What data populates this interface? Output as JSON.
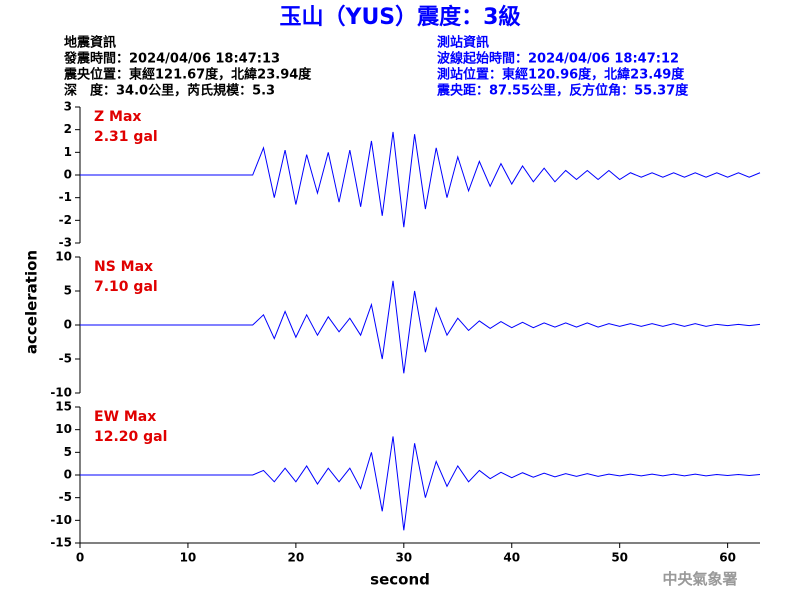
{
  "header": {
    "title": "玉山（YUS）震度：3級",
    "left": [
      "地震資訊",
      "發震時間：2024/04/06 18:47:13",
      "震央位置：東經121.67度，北緯23.94度",
      "深　度：34.0公里，芮氏規模：5.3"
    ],
    "right": [
      "測站資訊",
      "波線起始時間：2024/04/06 18:47:12",
      "測站位置：東經120.96度，北緯23.49度",
      "震央距：87.55公里，反方位角：55.37度"
    ],
    "ylabel": "acceleration",
    "xlabel": "second",
    "footer": "中央氣象署"
  },
  "chart_data": [
    {
      "type": "line",
      "title": "Z Max",
      "annotation": "2.31 gal",
      "color": "#0000ff",
      "title_color": "#e00000",
      "x": [
        0,
        1,
        2,
        3,
        4,
        5,
        6,
        7,
        8,
        9,
        10,
        11,
        12,
        13,
        14,
        15,
        16,
        17,
        18,
        19,
        20,
        21,
        22,
        23,
        24,
        25,
        26,
        27,
        28,
        29,
        30,
        31,
        32,
        33,
        34,
        35,
        36,
        37,
        38,
        39,
        40,
        41,
        42,
        43,
        44,
        45,
        46,
        47,
        48,
        49,
        50,
        51,
        52,
        53,
        54,
        55,
        56,
        57,
        58,
        59,
        60,
        61,
        62,
        63
      ],
      "values": [
        0,
        0,
        0,
        0,
        0,
        0,
        0,
        0,
        0,
        0,
        0,
        0,
        0,
        0,
        0,
        0,
        0,
        1.2,
        -1.0,
        1.1,
        -1.3,
        0.9,
        -0.8,
        1.0,
        -1.2,
        1.1,
        -1.4,
        1.5,
        -1.8,
        1.9,
        -2.3,
        1.8,
        -1.5,
        1.2,
        -1.0,
        0.8,
        -0.7,
        0.6,
        -0.5,
        0.5,
        -0.4,
        0.4,
        -0.3,
        0.3,
        -0.3,
        0.2,
        -0.2,
        0.2,
        -0.2,
        0.2,
        -0.2,
        0.1,
        -0.1,
        0.1,
        -0.1,
        0.1,
        -0.1,
        0.1,
        -0.1,
        0.1,
        -0.1,
        0.1,
        -0.1,
        0.1
      ],
      "xlim": [
        0,
        63
      ],
      "ylim": [
        -3,
        3
      ],
      "yticks": [
        -3,
        -2,
        -1,
        0,
        1,
        2,
        3
      ]
    },
    {
      "type": "line",
      "title": "NS Max",
      "annotation": "7.10 gal",
      "color": "#0000ff",
      "title_color": "#e00000",
      "x": [
        0,
        1,
        2,
        3,
        4,
        5,
        6,
        7,
        8,
        9,
        10,
        11,
        12,
        13,
        14,
        15,
        16,
        17,
        18,
        19,
        20,
        21,
        22,
        23,
        24,
        25,
        26,
        27,
        28,
        29,
        30,
        31,
        32,
        33,
        34,
        35,
        36,
        37,
        38,
        39,
        40,
        41,
        42,
        43,
        44,
        45,
        46,
        47,
        48,
        49,
        50,
        51,
        52,
        53,
        54,
        55,
        56,
        57,
        58,
        59,
        60,
        61,
        62,
        63
      ],
      "values": [
        0,
        0,
        0,
        0,
        0,
        0,
        0,
        0,
        0,
        0,
        0,
        0,
        0,
        0,
        0,
        0,
        0,
        1.5,
        -2,
        2,
        -1.8,
        1.5,
        -1.5,
        1.2,
        -1,
        1,
        -1.5,
        3,
        -5,
        6.5,
        -7.1,
        5,
        -4,
        2.5,
        -1.5,
        1,
        -0.8,
        0.6,
        -0.5,
        0.5,
        -0.4,
        0.4,
        -0.4,
        0.3,
        -0.3,
        0.3,
        -0.3,
        0.3,
        -0.3,
        0.2,
        -0.2,
        0.2,
        -0.2,
        0.2,
        -0.2,
        0.2,
        -0.2,
        0.2,
        -0.2,
        0.1,
        -0.1,
        0.1,
        -0.1,
        0.1
      ],
      "xlim": [
        0,
        63
      ],
      "ylim": [
        -10,
        10
      ],
      "yticks": [
        -10,
        -5,
        0,
        5,
        10
      ]
    },
    {
      "type": "line",
      "title": "EW Max",
      "annotation": "12.20 gal",
      "color": "#0000ff",
      "title_color": "#e00000",
      "x": [
        0,
        1,
        2,
        3,
        4,
        5,
        6,
        7,
        8,
        9,
        10,
        11,
        12,
        13,
        14,
        15,
        16,
        17,
        18,
        19,
        20,
        21,
        22,
        23,
        24,
        25,
        26,
        27,
        28,
        29,
        30,
        31,
        32,
        33,
        34,
        35,
        36,
        37,
        38,
        39,
        40,
        41,
        42,
        43,
        44,
        45,
        46,
        47,
        48,
        49,
        50,
        51,
        52,
        53,
        54,
        55,
        56,
        57,
        58,
        59,
        60,
        61,
        62,
        63
      ],
      "values": [
        0,
        0,
        0,
        0,
        0,
        0,
        0,
        0,
        0,
        0,
        0,
        0,
        0,
        0,
        0,
        0,
        0,
        1,
        -1.5,
        1.5,
        -1.5,
        2,
        -2,
        1.5,
        -1.5,
        1.5,
        -3,
        5,
        -8,
        8.5,
        -12.2,
        7,
        -5,
        3,
        -2.5,
        2,
        -1.5,
        1,
        -0.8,
        0.6,
        -0.6,
        0.5,
        -0.5,
        0.4,
        -0.4,
        0.3,
        -0.3,
        0.3,
        -0.3,
        0.2,
        -0.2,
        0.2,
        -0.2,
        0.2,
        -0.2,
        0.2,
        -0.2,
        0.2,
        -0.2,
        0.1,
        -0.1,
        0.1,
        -0.1,
        0.1
      ],
      "xlim": [
        0,
        63
      ],
      "xticks": [
        0,
        10,
        20,
        30,
        40,
        50,
        60
      ],
      "ylim": [
        -15,
        15
      ],
      "yticks": [
        -15,
        -10,
        -5,
        0,
        5,
        10,
        15
      ]
    }
  ]
}
